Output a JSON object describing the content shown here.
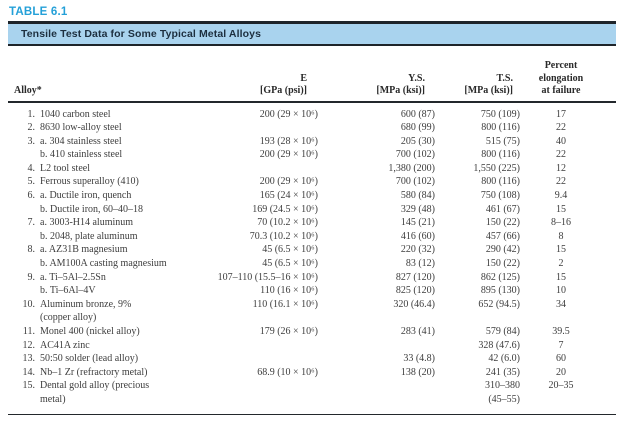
{
  "table": {
    "label": "TABLE 6.1",
    "title": "Tensile Test Data for Some Typical Metal Alloys",
    "colors": {
      "label_blue": "#24a0d8",
      "banner_bg": "#a9d3ee",
      "banner_text": "#1d2f3f",
      "rule_dark": "#23282c",
      "body_text": "#3d3d3d"
    },
    "columns": {
      "alloy": "Alloy*",
      "e": [
        "E",
        "[GPa (psi)]"
      ],
      "ys": [
        "Y.S.",
        "[MPa (ksi)]"
      ],
      "ts": [
        "T.S.",
        "[MPa (ksi)]"
      ],
      "elongation": [
        "Percent",
        "elongation",
        "at failure"
      ]
    },
    "rows": [
      {
        "num": "1.",
        "label": "1040 carbon steel",
        "e": "200 (29 × 10⁶)",
        "ys": "600 (87)",
        "ts": "750 (109)",
        "el": "17"
      },
      {
        "num": "2.",
        "label": "8630 low-alloy steel",
        "e": "",
        "ys": "680 (99)",
        "ts": "800 (116)",
        "el": "22"
      },
      {
        "num": "3.",
        "label": "a. 304 stainless steel",
        "e": "193 (28 × 10⁶)",
        "ys": "205 (30)",
        "ts": "515 (75)",
        "el": "40"
      },
      {
        "num": "",
        "label": "b. 410 stainless steel",
        "e": "200 (29 × 10⁶)",
        "ys": "700 (102)",
        "ts": "800 (116)",
        "el": "22"
      },
      {
        "num": "4.",
        "label": "L2 tool steel",
        "e": "",
        "ys": "1,380 (200)",
        "ts": "1,550 (225)",
        "el": "12"
      },
      {
        "num": "5.",
        "label": "Ferrous superalloy (410)",
        "e": "200 (29 × 10⁶)",
        "ys": "700 (102)",
        "ts": "800 (116)",
        "el": "22"
      },
      {
        "num": "6.",
        "label": "a. Ductile iron, quench",
        "e": "165 (24 × 10⁶)",
        "ys": "580 (84)",
        "ts": "750 (108)",
        "el": "9.4"
      },
      {
        "num": "",
        "label": "b. Ductile iron, 60–40–18",
        "e": "169 (24.5 × 10⁶)",
        "ys": "329 (48)",
        "ts": "461 (67)",
        "el": "15"
      },
      {
        "num": "7.",
        "label": "a. 3003-H14 aluminum",
        "e": "70 (10.2 × 10⁶)",
        "ys": "145 (21)",
        "ts": "150 (22)",
        "el": "8–16"
      },
      {
        "num": "",
        "label": "b. 2048, plate aluminum",
        "e": "70.3 (10.2 × 10⁶)",
        "ys": "416 (60)",
        "ts": "457 (66)",
        "el": "8"
      },
      {
        "num": "8.",
        "label": "a. AZ31B magnesium",
        "e": "45 (6.5 × 10⁶)",
        "ys": "220 (32)",
        "ts": "290 (42)",
        "el": "15"
      },
      {
        "num": "",
        "label": "b. AM100A casting magnesium",
        "e": "45 (6.5 × 10⁶)",
        "ys": "83 (12)",
        "ts": "150 (22)",
        "el": "2"
      },
      {
        "num": "9.",
        "label": "a. Ti–5Al–2.5Sn",
        "e": "107–110 (15.5–16 × 10⁶)",
        "ys": "827 (120)",
        "ts": "862 (125)",
        "el": "15"
      },
      {
        "num": "",
        "label": "b. Ti–6Al–4V",
        "e": "110 (16 × 10⁶)",
        "ys": "825 (120)",
        "ts": "895 (130)",
        "el": "10"
      },
      {
        "num": "10.",
        "label": "Aluminum bronze, 9%",
        "e": "110 (16.1 × 10⁶)",
        "ys": "320 (46.4)",
        "ts": "652 (94.5)",
        "el": "34"
      },
      {
        "num": "",
        "label": "(copper alloy)",
        "e": "",
        "ys": "",
        "ts": "",
        "el": ""
      },
      {
        "num": "11.",
        "label": "Monel 400 (nickel alloy)",
        "e": "179 (26 × 10⁶)",
        "ys": "283 (41)",
        "ts": "579 (84)",
        "el": "39.5"
      },
      {
        "num": "12.",
        "label": "AC41A zinc",
        "e": "",
        "ys": "",
        "ts": "328 (47.6)",
        "el": "7"
      },
      {
        "num": "13.",
        "label": "50:50 solder (lead alloy)",
        "e": "",
        "ys": "33 (4.8)",
        "ts": "42 (6.0)",
        "el": "60"
      },
      {
        "num": "14.",
        "label": "Nb–1 Zr (refractory metal)",
        "e": "68.9 (10 × 10⁶)",
        "ys": "138 (20)",
        "ts": "241 (35)",
        "el": "20"
      },
      {
        "num": "15.",
        "label": "Dental gold alloy (precious",
        "e": "",
        "ys": "",
        "ts": "310–380",
        "el": "20–35"
      },
      {
        "num": "",
        "label": "metal)",
        "e": "",
        "ys": "",
        "ts": "(45–55)",
        "el": ""
      }
    ]
  }
}
